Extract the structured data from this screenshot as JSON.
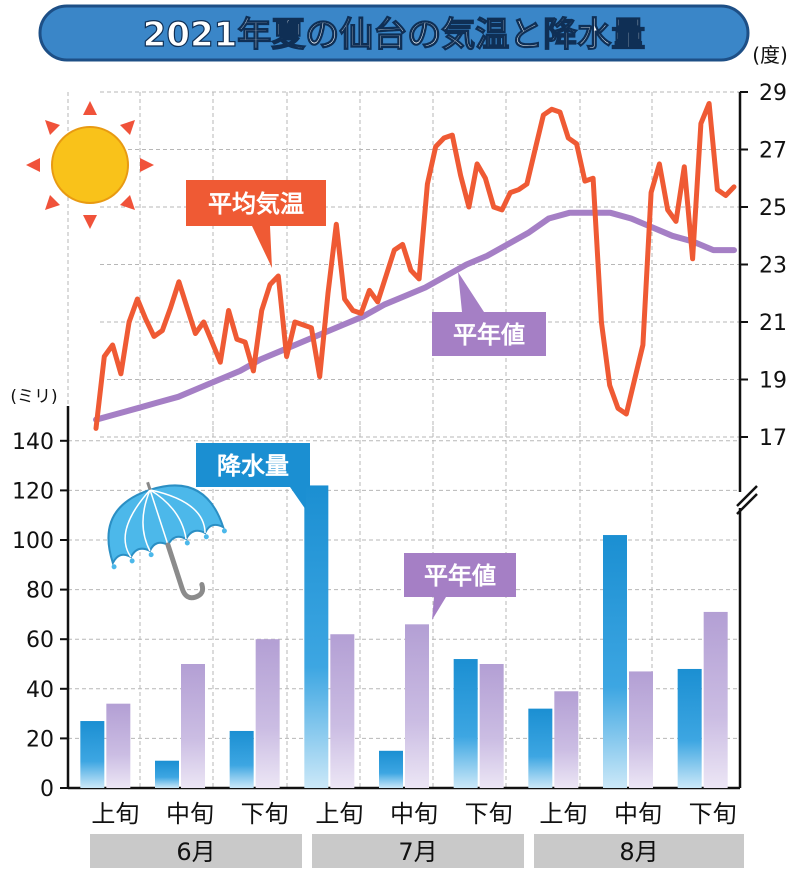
{
  "title": "2021年夏の仙台の気温と降水量",
  "colors": {
    "title_bg": "#3a86c8",
    "title_border": "#1d4f86",
    "temp_line": "#ef5a34",
    "normal_temp_line": "#a57fc5",
    "precip_bar": "#1b8fd2",
    "normal_precip_bar": "#b8a5d6",
    "grid": "#b7b7b7",
    "month_band": "#c9c9c9",
    "sun": "#f9c21a",
    "sun_ray": "#f0523a",
    "umbrella": "#4cb8ea"
  },
  "icons": [
    "sun-icon",
    "umbrella-icon"
  ],
  "chart_data": [
    {
      "type": "line",
      "title": "",
      "unit_label": "(度)",
      "ylim": [
        17,
        29
      ],
      "yticks": [
        17,
        19,
        21,
        23,
        25,
        27,
        29
      ],
      "grid": true,
      "series": [
        {
          "name": "平均気温",
          "values": [
            17.3,
            19.8,
            20.2,
            19.2,
            21.0,
            21.8,
            21.1,
            20.5,
            20.7,
            21.5,
            22.4,
            21.5,
            20.6,
            21.0,
            20.3,
            19.6,
            21.4,
            20.4,
            20.3,
            19.3,
            21.4,
            22.3,
            22.6,
            19.8,
            21.0,
            20.9,
            20.8,
            19.1,
            22.0,
            24.4,
            21.8,
            21.4,
            21.3,
            22.1,
            21.7,
            22.6,
            23.5,
            23.7,
            22.8,
            22.5,
            25.8,
            27.1,
            27.4,
            27.5,
            26.1,
            25.0,
            26.5,
            26.0,
            25.0,
            24.9,
            25.5,
            25.6,
            25.8,
            27.0,
            28.2,
            28.4,
            28.3,
            27.4,
            27.2,
            25.9,
            26.0,
            21.0,
            18.8,
            18.0,
            17.8,
            19.0,
            20.2,
            25.5,
            26.5,
            24.9,
            24.5,
            26.4,
            23.2,
            27.9,
            28.6,
            25.6,
            25.4,
            25.7
          ]
        },
        {
          "name": "平年値",
          "values": [
            17.6,
            17.8,
            18.0,
            18.2,
            18.4,
            18.7,
            19.0,
            19.3,
            19.7,
            20.0,
            20.3,
            20.6,
            20.9,
            21.2,
            21.6,
            21.9,
            22.2,
            22.6,
            23.0,
            23.3,
            23.7,
            24.1,
            24.6,
            24.8,
            24.8,
            24.8,
            24.6,
            24.3,
            24.0,
            23.8,
            23.5,
            23.5
          ]
        }
      ]
    },
    {
      "type": "bar",
      "title": "",
      "unit_label": "(ミリ)",
      "categories": [
        "上旬",
        "中旬",
        "下旬",
        "上旬",
        "中旬",
        "下旬",
        "上旬",
        "中旬",
        "下旬"
      ],
      "groups": [
        "6月",
        "7月",
        "8月"
      ],
      "ylim": [
        0,
        150
      ],
      "yticks": [
        0,
        20,
        40,
        60,
        80,
        100,
        120,
        140
      ],
      "grid": true,
      "series": [
        {
          "name": "降水量",
          "values": [
            27,
            11,
            23,
            122,
            15,
            52,
            32,
            102,
            48
          ]
        },
        {
          "name": "平年値",
          "values": [
            34,
            50,
            60,
            62,
            66,
            50,
            39,
            47,
            71
          ]
        }
      ]
    }
  ]
}
